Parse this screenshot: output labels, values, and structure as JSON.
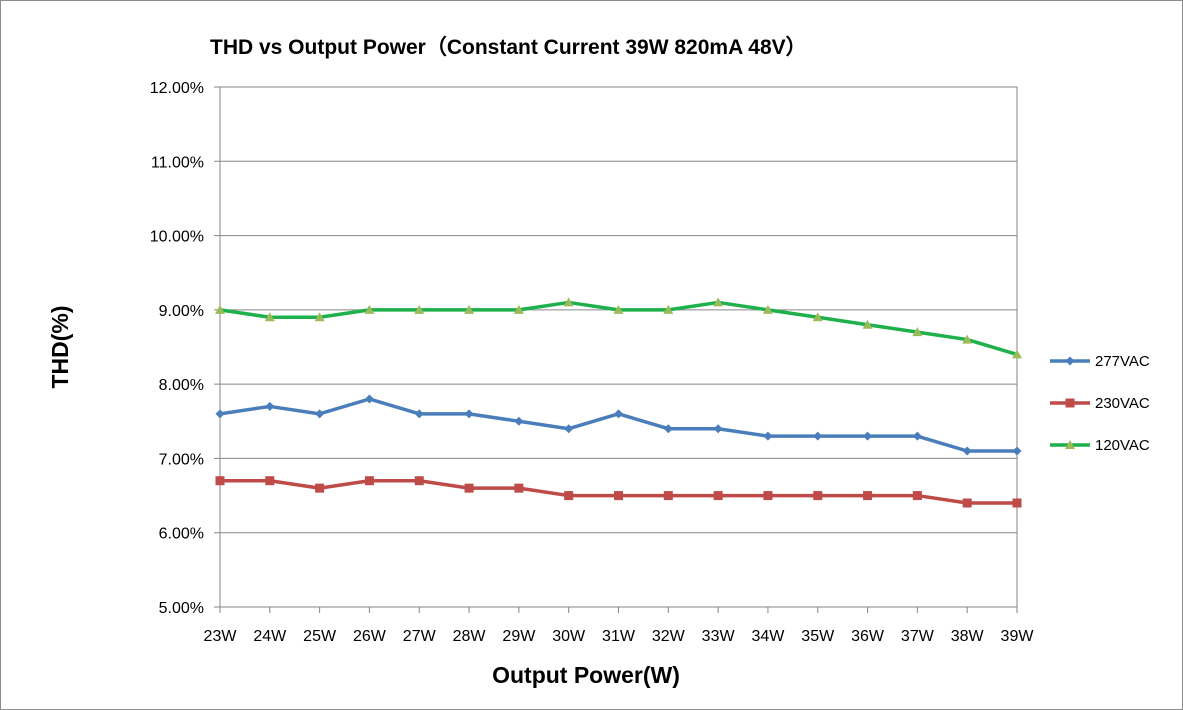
{
  "chart_data": {
    "type": "line",
    "title": "THD vs Output Power（Constant Current 39W  820mA 48V）",
    "xlabel": "Output Power(W)",
    "ylabel": "THD(%)",
    "categories": [
      "23W",
      "24W",
      "25W",
      "26W",
      "27W",
      "28W",
      "29W",
      "30W",
      "31W",
      "32W",
      "33W",
      "34W",
      "35W",
      "36W",
      "37W",
      "38W",
      "39W"
    ],
    "yticks": [
      "5.00%",
      "6.00%",
      "7.00%",
      "8.00%",
      "9.00%",
      "10.00%",
      "11.00%",
      "12.00%"
    ],
    "ylim": [
      5,
      12
    ],
    "grid": true,
    "legend_position": "right",
    "series": [
      {
        "name": "277VAC",
        "color": "#4a7ebb",
        "marker": "diamond",
        "values": [
          7.6,
          7.7,
          7.6,
          7.8,
          7.6,
          7.6,
          7.5,
          7.4,
          7.6,
          7.4,
          7.4,
          7.3,
          7.3,
          7.3,
          7.3,
          7.1,
          7.1
        ]
      },
      {
        "name": "230VAC",
        "color": "#be4b48",
        "marker": "square",
        "values": [
          6.7,
          6.7,
          6.6,
          6.7,
          6.7,
          6.6,
          6.6,
          6.5,
          6.5,
          6.5,
          6.5,
          6.5,
          6.5,
          6.5,
          6.5,
          6.4,
          6.4
        ]
      },
      {
        "name": "120VAC",
        "color": "#1db04b",
        "markerColor": "#9bbb59",
        "marker": "triangle",
        "values": [
          9.0,
          8.9,
          8.9,
          9.0,
          9.0,
          9.0,
          9.0,
          9.1,
          9.0,
          9.0,
          9.1,
          9.0,
          8.9,
          8.8,
          8.7,
          8.6,
          8.4
        ]
      }
    ]
  }
}
